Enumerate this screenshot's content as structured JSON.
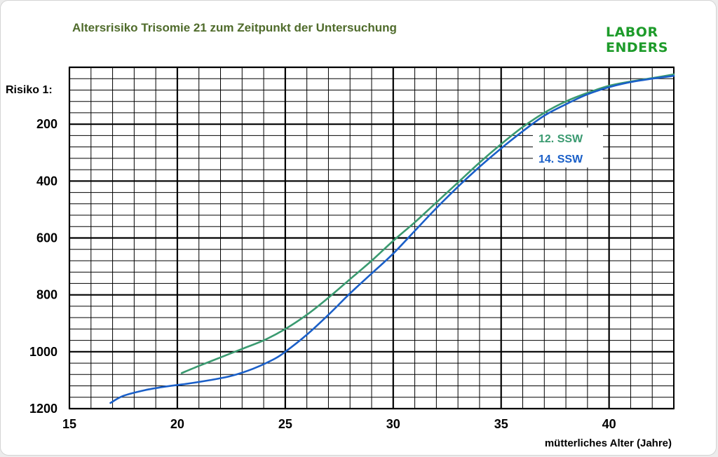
{
  "chart_data": {
    "type": "line",
    "title": "Altersrisiko Trisomie 21 zum Zeitpunkt der Untersuchung",
    "brand": "LABOR ENDERS",
    "xlabel": "mütterliches Alter (Jahre)",
    "ylabel": "Risiko 1:",
    "xlim": [
      15,
      43
    ],
    "ylim": [
      0,
      1200
    ],
    "y_inverted": true,
    "grid": true,
    "xticks": [
      "15",
      "20",
      "25",
      "30",
      "35",
      "40"
    ],
    "yticks": [
      "200",
      "400",
      "600",
      "800",
      "1000",
      "1200"
    ],
    "legend_placement": "right, inside",
    "series": [
      {
        "name": "12. SSW",
        "color": "#3a9a70",
        "x": [
          20.2,
          21,
          22,
          23,
          24,
          25,
          26,
          27,
          28,
          29,
          30,
          31,
          32,
          33,
          34,
          35,
          36,
          37,
          38,
          39,
          40,
          41,
          42,
          43
        ],
        "y": [
          1075,
          1050,
          1020,
          990,
          960,
          920,
          870,
          810,
          745,
          680,
          610,
          545,
          475,
          405,
          335,
          270,
          210,
          160,
          120,
          90,
          65,
          50,
          38,
          25
        ]
      },
      {
        "name": "14. SSW",
        "color": "#1a5fc8",
        "x": [
          16.9,
          17.5,
          18.5,
          19.5,
          20.5,
          21.5,
          22.5,
          23.5,
          24.5,
          25,
          26,
          27,
          28,
          29,
          30,
          31,
          32,
          33,
          34,
          35,
          36,
          37,
          38,
          39,
          40,
          41,
          42,
          43
        ],
        "y": [
          1180,
          1155,
          1135,
          1122,
          1112,
          1100,
          1085,
          1060,
          1025,
          1000,
          940,
          870,
          795,
          725,
          655,
          575,
          495,
          420,
          350,
          285,
          225,
          170,
          130,
          95,
          70,
          52,
          40,
          30
        ]
      }
    ]
  }
}
